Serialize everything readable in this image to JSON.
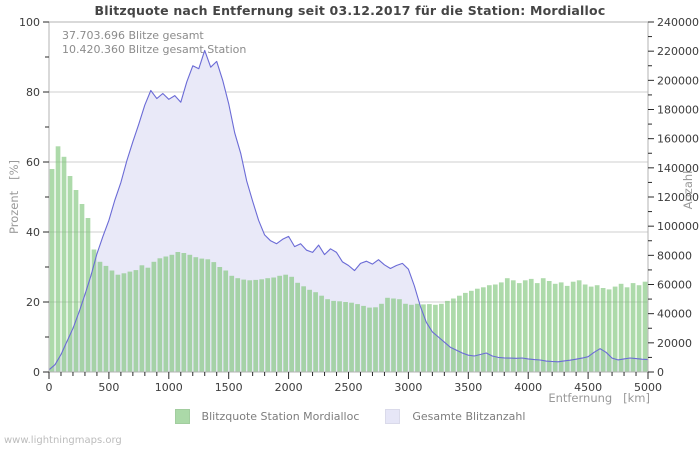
{
  "page": {
    "watermark": "www.lightningmaps.org",
    "background": "#ffffff"
  },
  "chart_data": {
    "type": "area",
    "title": "Blitzquote nach Entfernung seit 03.12.2017 für die Station: Mordialloc",
    "annotations": {
      "line1": "37.703.696 Blitze gesamt",
      "line2": "10.420.360 Blitze gesamt Station"
    },
    "x_axis": {
      "label": "Entfernung   [km]",
      "min": 0,
      "max": 5000,
      "major_ticks": [
        0,
        500,
        1000,
        1500,
        2000,
        2500,
        3000,
        3500,
        4000,
        4500,
        5000
      ],
      "minor_tick_step": 100
    },
    "y_left": {
      "label": "Prozent   [%]",
      "min": 0,
      "max": 100,
      "major_ticks": [
        0,
        20,
        40,
        60,
        80,
        100
      ],
      "minor_tick_step": 10,
      "gridlines": [
        20,
        40,
        60,
        80
      ]
    },
    "y_right": {
      "label": "Anzahl",
      "min": 0,
      "max": 240000,
      "major_ticks": [
        0,
        20000,
        40000,
        60000,
        80000,
        100000,
        120000,
        140000,
        160000,
        180000,
        200000,
        220000,
        240000
      ],
      "minor_tick_step": 10000
    },
    "grid": "horizontal-only",
    "legend_position": "bottom-center",
    "series": [
      {
        "name": "Blitzquote Station Mordialloc",
        "type": "bar",
        "axis": "left",
        "color": "#abd9a8",
        "fill": "rgba(122,196,118,0.62)",
        "bin_width_km": 50,
        "x_start": 0,
        "values_percent": [
          58,
          64.5,
          61.5,
          56,
          52,
          48,
          44,
          35,
          31.5,
          30.3,
          29,
          27.8,
          28.2,
          28.7,
          29.1,
          30.5,
          29.8,
          31.5,
          32.5,
          33,
          33.5,
          34.3,
          34,
          33.5,
          32.8,
          32.4,
          32.2,
          31.4,
          30,
          29,
          27.5,
          26.8,
          26.4,
          26.2,
          26.3,
          26.5,
          26.8,
          27,
          27.5,
          27.8,
          27.2,
          25.5,
          24.5,
          23.5,
          22.8,
          21.8,
          20.8,
          20.3,
          20.2,
          20,
          19.8,
          19.4,
          18.9,
          18.4,
          18.5,
          19.5,
          21.2,
          21,
          20.8,
          19.5,
          19.2,
          19.5,
          19.3,
          19.4,
          19.2,
          19.5,
          20.3,
          21,
          21.8,
          22.6,
          23.2,
          23.8,
          24.2,
          24.8,
          25,
          25.6,
          26.8,
          26.2,
          25.4,
          26.2,
          26.6,
          25.4,
          26.8,
          26,
          25.2,
          25.6,
          24.6,
          25.8,
          26.2,
          25,
          24.4,
          24.8,
          24,
          23.6,
          24.4,
          25.2,
          24.2,
          25.4,
          24.8,
          25.8
        ]
      },
      {
        "name": "Gesamte Blitzanzahl",
        "type": "area-line",
        "axis": "right",
        "fill": "#e9e9f8",
        "line_color": "#6b6bd6",
        "km": [
          0,
          50,
          100,
          150,
          200,
          250,
          300,
          350,
          400,
          450,
          500,
          550,
          600,
          650,
          700,
          750,
          800,
          850,
          900,
          950,
          1000,
          1050,
          1100,
          1150,
          1200,
          1250,
          1300,
          1350,
          1400,
          1450,
          1500,
          1550,
          1600,
          1650,
          1700,
          1750,
          1800,
          1850,
          1900,
          1950,
          2000,
          2050,
          2100,
          2150,
          2200,
          2250,
          2300,
          2350,
          2400,
          2450,
          2500,
          2550,
          2600,
          2650,
          2700,
          2750,
          2800,
          2850,
          2900,
          2950,
          3000,
          3050,
          3100,
          3150,
          3200,
          3250,
          3300,
          3350,
          3400,
          3450,
          3500,
          3550,
          3600,
          3650,
          3700,
          3750,
          3800,
          3850,
          3900,
          3950,
          4000,
          4050,
          4100,
          4150,
          4200,
          4250,
          4300,
          4350,
          4400,
          4450,
          4500,
          4550,
          4600,
          4650,
          4700,
          4750,
          4800,
          4850,
          4900,
          4950,
          5000
        ],
        "values_count": [
          1500,
          5000,
          12000,
          21000,
          30000,
          41000,
          53000,
          66000,
          81000,
          93000,
          104000,
          118000,
          130000,
          145000,
          158000,
          170000,
          183000,
          193000,
          187500,
          191000,
          187000,
          189500,
          185000,
          199000,
          210000,
          208000,
          220500,
          209000,
          213000,
          200000,
          184000,
          164000,
          150000,
          131000,
          117000,
          104000,
          94000,
          90000,
          88000,
          91000,
          93000,
          86000,
          88000,
          83500,
          82000,
          87000,
          80500,
          84500,
          82000,
          75500,
          73000,
          69500,
          74500,
          76000,
          74000,
          77000,
          73500,
          71000,
          73000,
          74500,
          70500,
          59000,
          45000,
          34000,
          27500,
          24000,
          20500,
          17000,
          15000,
          13000,
          11500,
          11000,
          12000,
          13000,
          11000,
          10000,
          9700,
          9500,
          9400,
          9600,
          9000,
          8500,
          8200,
          7500,
          7200,
          7000,
          7600,
          8100,
          8800,
          9500,
          10500,
          13500,
          16000,
          13500,
          9500,
          8300,
          9000,
          9600,
          9200,
          8800,
          8500
        ]
      }
    ],
    "legend": [
      {
        "label": "Blitzquote Station Mordialloc",
        "color": "#abd9a8"
      },
      {
        "label": "Gesamte Blitzanzahl",
        "color": "#e6e6f7"
      }
    ],
    "colors": {
      "gridline": "#cfcfcf",
      "plot_border": "#b3b3b3",
      "tick": "#2a2a2a",
      "tick_label": "#3c3c3c"
    }
  }
}
